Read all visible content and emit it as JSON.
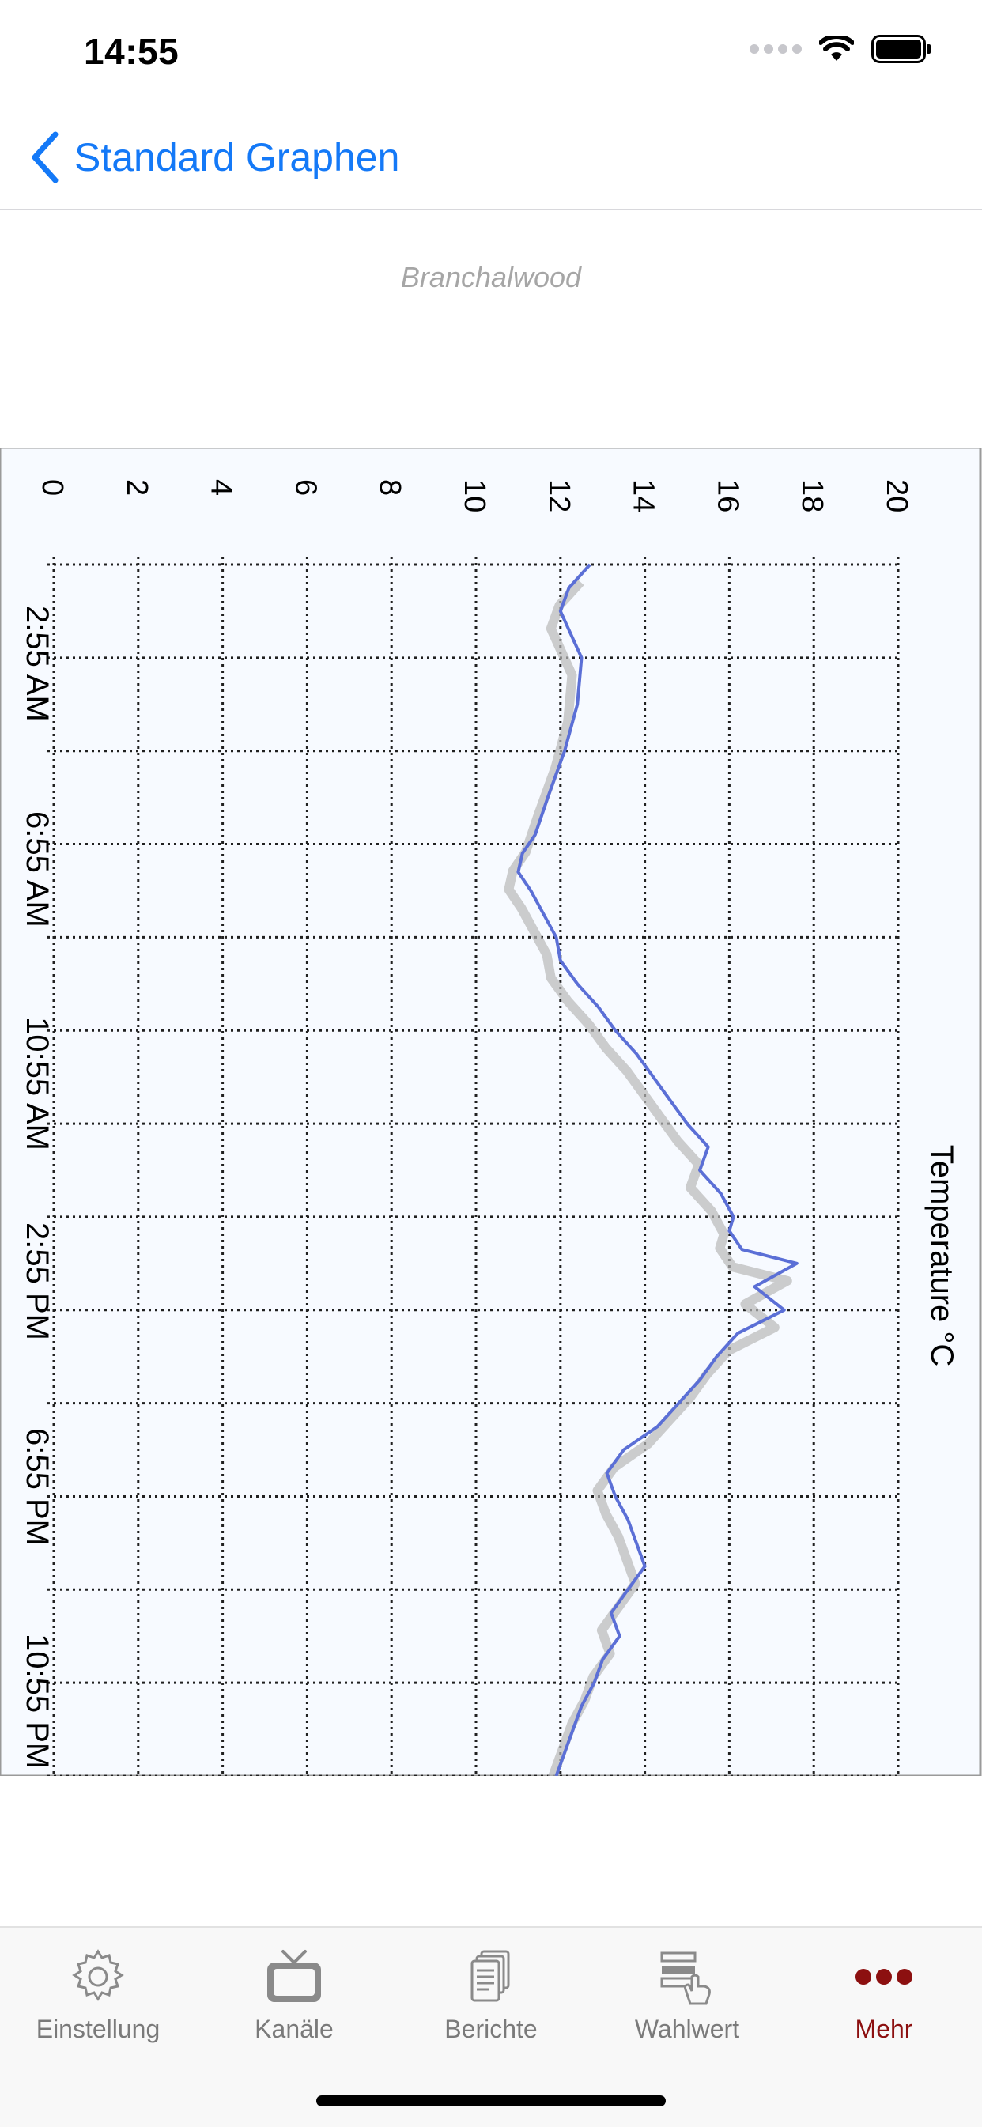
{
  "status_bar": {
    "time": "14:55"
  },
  "nav": {
    "back_label": "Standard Graphen"
  },
  "station": {
    "name": "Branchalwood"
  },
  "chart_data": {
    "type": "line",
    "title": "",
    "ylabel": "Temperature °C",
    "xlabel": "",
    "ylim": [
      0,
      20
    ],
    "y_ticks": [
      "0",
      "2",
      "4",
      "6",
      "8",
      "10",
      "12",
      "14",
      "16",
      "18",
      "20"
    ],
    "x_ticks": [
      "2:55 AM",
      "6:55 AM",
      "10:55 AM",
      "2:55 PM",
      "6:55 PM",
      "10:55 PM"
    ],
    "x_range_hours": [
      1.0,
      27.0
    ],
    "grid": true,
    "rotation": "rotated 90° clockwise",
    "series": [
      {
        "color": "#5b6fd6",
        "shadow_color": "#b8b8b8",
        "x_hours": [
          1.0,
          1.5,
          2.0,
          3.0,
          4.0,
          5.0,
          6.0,
          6.8,
          7.2,
          7.6,
          8.0,
          8.5,
          9.0,
          9.5,
          10.0,
          10.5,
          11.0,
          11.5,
          12.0,
          12.5,
          13.0,
          13.5,
          14.0,
          14.5,
          15.0,
          15.3,
          15.7,
          16.0,
          16.5,
          17.0,
          17.5,
          18.0,
          18.5,
          19.0,
          19.5,
          20.0,
          20.5,
          21.0,
          21.5,
          22.0,
          22.5,
          23.0,
          23.5,
          24.0,
          24.5,
          25.0,
          25.5,
          26.0,
          26.5,
          27.0
        ],
        "values": [
          12.7,
          12.2,
          12.0,
          12.5,
          12.4,
          12.1,
          11.7,
          11.4,
          11.1,
          11.0,
          11.3,
          11.6,
          11.9,
          12.0,
          12.4,
          12.9,
          13.3,
          13.8,
          14.2,
          14.6,
          15.0,
          15.5,
          15.3,
          15.8,
          16.1,
          16.0,
          16.3,
          17.6,
          16.6,
          17.3,
          16.2,
          15.7,
          15.3,
          14.8,
          14.3,
          13.5,
          13.1,
          13.3,
          13.6,
          13.8,
          14.0,
          13.6,
          13.2,
          13.4,
          13.0,
          12.8,
          12.5,
          12.3,
          12.1,
          11.9
        ]
      }
    ]
  },
  "tabs": [
    {
      "label": "Einstellung",
      "icon": "gear-icon"
    },
    {
      "label": "Kanäle",
      "icon": "tv-icon"
    },
    {
      "label": "Berichte",
      "icon": "documents-icon"
    },
    {
      "label": "Wahlwert",
      "icon": "selection-hand-icon"
    },
    {
      "label": "Mehr",
      "icon": "more-dots-icon"
    }
  ],
  "colors": {
    "accent": "#1479f7",
    "active_tab": "#8c1010",
    "inactive_tab": "#7a7a7a"
  }
}
